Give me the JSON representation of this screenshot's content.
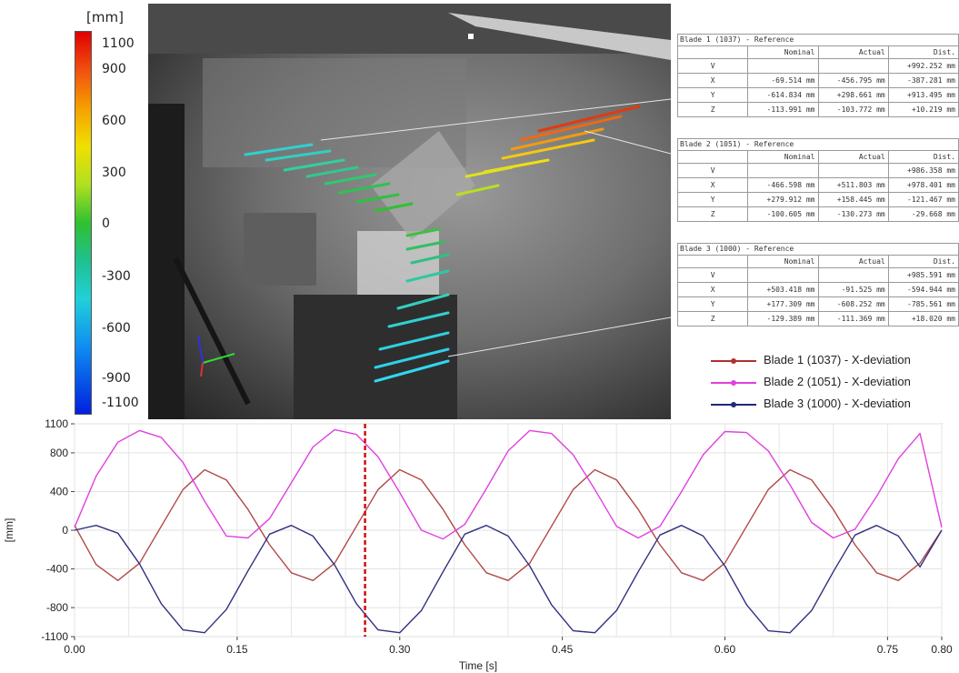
{
  "color_scale": {
    "unit": "[mm]",
    "labels": [
      "1100",
      "900",
      "600",
      "300",
      "0",
      "-300",
      "-600",
      "-900",
      "-1100"
    ],
    "levels": [
      1100,
      900,
      600,
      300,
      0,
      -300,
      -600,
      -900,
      -1100
    ],
    "range": [
      -1100,
      1100
    ]
  },
  "tables": [
    {
      "title": "Blade 1 (1037) - Reference",
      "headers": [
        "",
        "Nominal",
        "Actual",
        "Dist."
      ],
      "rows": [
        [
          "V",
          "",
          "",
          "+992.252 mm"
        ],
        [
          "X",
          "-69.514 mm",
          "-456.795 mm",
          "-387.281 mm"
        ],
        [
          "Y",
          "-614.834 mm",
          "+298.661 mm",
          "+913.495 mm"
        ],
        [
          "Z",
          "-113.991 mm",
          "-103.772 mm",
          "+10.219 mm"
        ]
      ]
    },
    {
      "title": "Blade 2 (1051) - Reference",
      "headers": [
        "",
        "Nominal",
        "Actual",
        "Dist."
      ],
      "rows": [
        [
          "V",
          "",
          "",
          "+986.358 mm"
        ],
        [
          "X",
          "-466.598 mm",
          "+511.803 mm",
          "+978.401 mm"
        ],
        [
          "Y",
          "+279.912 mm",
          "+158.445 mm",
          "-121.467 mm"
        ],
        [
          "Z",
          "-100.605 mm",
          "-130.273 mm",
          "-29.668 mm"
        ]
      ]
    },
    {
      "title": "Blade 3 (1000) - Reference",
      "headers": [
        "",
        "Nominal",
        "Actual",
        "Dist."
      ],
      "rows": [
        [
          "V",
          "",
          "",
          "+985.591 mm"
        ],
        [
          "X",
          "+503.418 mm",
          "-91.525 mm",
          "-594.944 mm"
        ],
        [
          "Y",
          "+177.309 mm",
          "-608.252 mm",
          "-785.561 mm"
        ],
        [
          "Z",
          "-129.389 mm",
          "-111.369 mm",
          "+18.020 mm"
        ]
      ]
    }
  ],
  "chart_data": {
    "type": "line",
    "xlabel": "Time [s]",
    "ylabel": "[mm]",
    "xlim": [
      0,
      0.8
    ],
    "ylim": [
      -1100,
      1100
    ],
    "x_ticks": [
      "0.00",
      "0.15",
      "0.30",
      "0.45",
      "0.60",
      "0.75",
      "0.80"
    ],
    "x_tick_values": [
      0,
      0.15,
      0.3,
      0.45,
      0.6,
      0.75,
      0.8
    ],
    "y_ticks": [
      "1100",
      "800",
      "400",
      "0",
      "-400",
      "-800",
      "-1100"
    ],
    "y_tick_values": [
      1100,
      800,
      400,
      0,
      -400,
      -800,
      -1100
    ],
    "grid": true,
    "marker_time": 0.268,
    "marker_color": "#d01010",
    "x": [
      0.0,
      0.02,
      0.04,
      0.06,
      0.08,
      0.1,
      0.12,
      0.14,
      0.16,
      0.18,
      0.2,
      0.22,
      0.24,
      0.26,
      0.28,
      0.3,
      0.32,
      0.34,
      0.36,
      0.38,
      0.4,
      0.42,
      0.44,
      0.46,
      0.48,
      0.5,
      0.52,
      0.54,
      0.56,
      0.58,
      0.6,
      0.62,
      0.64,
      0.66,
      0.68,
      0.7,
      0.72,
      0.74,
      0.76,
      0.78,
      0.8
    ],
    "series": [
      {
        "name": "Blade 1 (1037) - X-deviation",
        "color": "#b04848",
        "values": [
          50,
          -355,
          -520,
          -340,
          40,
          420,
          625,
          520,
          215,
          -150,
          -440,
          -520,
          -340,
          40,
          420,
          625,
          520,
          215,
          -150,
          -440,
          -520,
          -340,
          40,
          420,
          625,
          520,
          215,
          -150,
          -440,
          -520,
          -340,
          40,
          420,
          625,
          520,
          215,
          -150,
          -440,
          -520,
          -340,
          0
        ]
      },
      {
        "name": "Blade 2 (1051) - X-deviation",
        "color": "#e040e0",
        "values": [
          30,
          560,
          910,
          1030,
          960,
          700,
          300,
          -60,
          -80,
          120,
          490,
          860,
          1040,
          990,
          760,
          390,
          0,
          -90,
          60,
          430,
          820,
          1030,
          1000,
          780,
          420,
          40,
          -80,
          40,
          400,
          780,
          1020,
          1010,
          820,
          470,
          80,
          -80,
          10,
          350,
          740,
          1000,
          30
        ]
      },
      {
        "name": "Blade 3 (1000) - X-deviation",
        "color": "#303080",
        "values": [
          0,
          50,
          -30,
          -350,
          -760,
          -1030,
          -1060,
          -820,
          -420,
          -40,
          50,
          -60,
          -360,
          -760,
          -1030,
          -1060,
          -830,
          -430,
          -40,
          50,
          -60,
          -370,
          -770,
          -1040,
          -1060,
          -830,
          -430,
          -50,
          50,
          -60,
          -370,
          -770,
          -1040,
          -1060,
          -830,
          -430,
          -50,
          50,
          -60,
          -380,
          0
        ]
      }
    ]
  },
  "legend": [
    {
      "label": "Blade 1 (1037) - X-deviation",
      "color": "#b03030"
    },
    {
      "label": "Blade 2 (1051) - X-deviation",
      "color": "#e040e0"
    },
    {
      "label": "Blade 3 (1000) - X-deviation",
      "color": "#202878"
    }
  ]
}
